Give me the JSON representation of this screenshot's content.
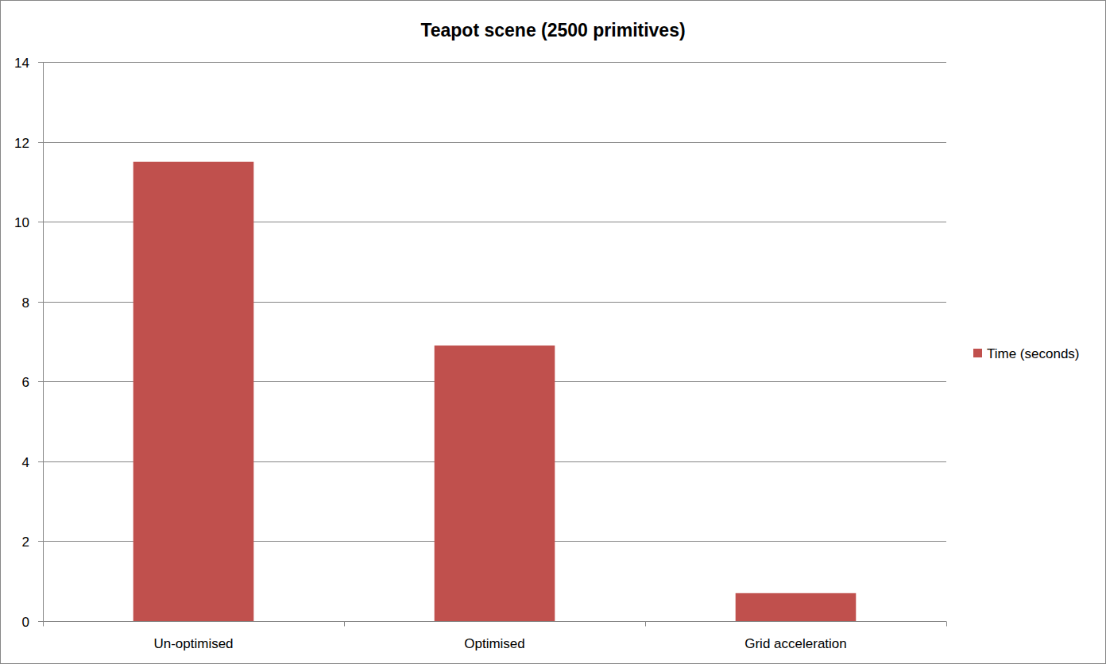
{
  "chart_data": {
    "type": "bar",
    "title": "Teapot scene (2500 primitives)",
    "categories": [
      "Un-optimised",
      "Optimised",
      "Grid acceleration"
    ],
    "series": [
      {
        "name": "Time (seconds)",
        "color": "#c0504d",
        "values": [
          11.5,
          6.9,
          0.7
        ]
      }
    ],
    "ylim": [
      0,
      14
    ],
    "yticks": [
      0,
      2,
      4,
      6,
      8,
      10,
      12,
      14
    ],
    "grid": true,
    "legend": "right"
  }
}
